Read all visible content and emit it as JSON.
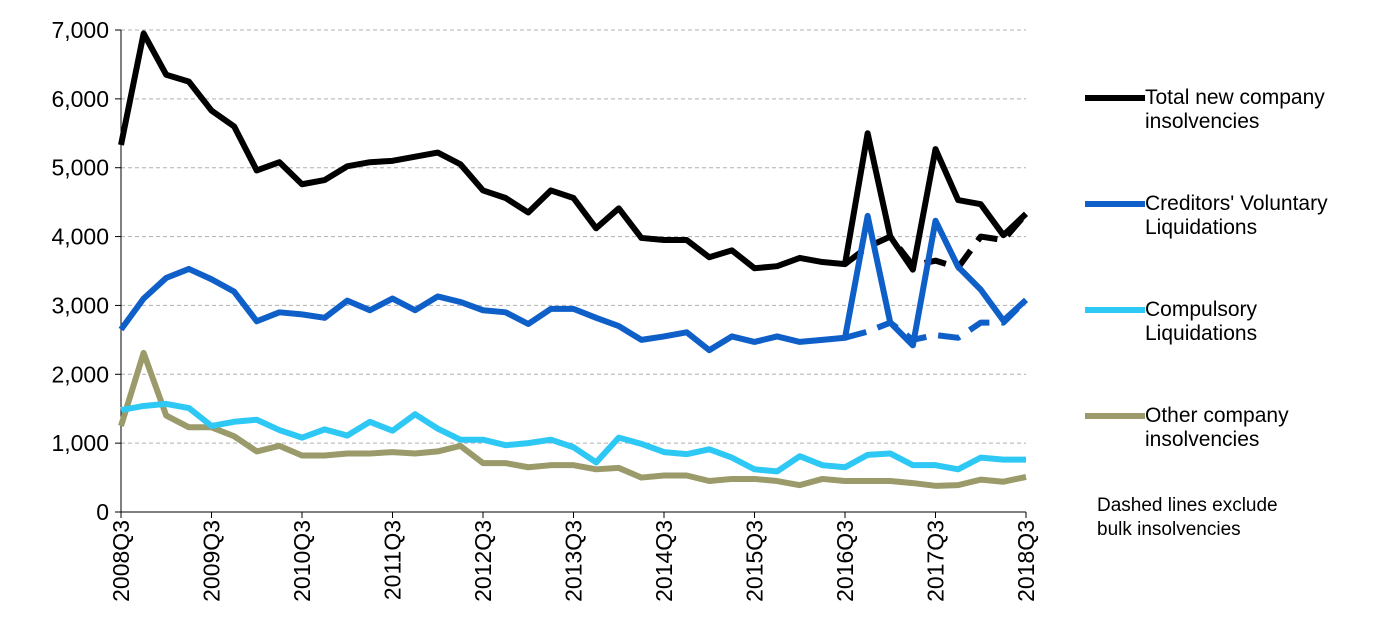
{
  "chart_data": {
    "type": "line",
    "categories": [
      "2008Q3",
      null,
      null,
      null,
      "2009Q3",
      null,
      null,
      null,
      "2010Q3",
      null,
      null,
      null,
      "2011Q3",
      null,
      null,
      null,
      "2012Q3",
      null,
      null,
      null,
      "2013Q3",
      null,
      null,
      null,
      "2014Q3",
      null,
      null,
      null,
      "2015Q3",
      null,
      null,
      null,
      "2016Q3",
      null,
      null,
      null,
      "2017Q3",
      null,
      null,
      null,
      "2018Q3"
    ],
    "series": [
      {
        "name": "Total new company insolvencies",
        "color": "#000000",
        "values": [
          5330,
          6950,
          6350,
          6250,
          5830,
          5600,
          4960,
          5080,
          4760,
          4820,
          5020,
          5080,
          5100,
          5160,
          5220,
          5050,
          4670,
          4560,
          4350,
          4670,
          4560,
          4120,
          4410,
          3980,
          3950,
          3950,
          3700,
          3800,
          3540,
          3570,
          3690,
          3630,
          3600,
          5500,
          4000,
          3520,
          5270,
          4530,
          4470,
          4020,
          4330
        ]
      },
      {
        "name": "Creditors' Voluntary Liquidations",
        "color": "#0f5fc9",
        "values": [
          2650,
          3100,
          3400,
          3530,
          3380,
          3200,
          2770,
          2900,
          2870,
          2820,
          3070,
          2930,
          3100,
          2930,
          3130,
          3050,
          2930,
          2900,
          2730,
          2950,
          2950,
          2820,
          2700,
          2500,
          2550,
          2610,
          2350,
          2550,
          2470,
          2550,
          2470,
          2500,
          2530,
          4300,
          2750,
          2420,
          4230,
          3560,
          3230,
          2780,
          3080
        ]
      },
      {
        "name": "Compulsory Liquidations",
        "color": "#2ec8f5",
        "values": [
          1480,
          1540,
          1570,
          1510,
          1250,
          1310,
          1340,
          1190,
          1080,
          1200,
          1110,
          1310,
          1180,
          1420,
          1210,
          1050,
          1050,
          970,
          1000,
          1050,
          940,
          720,
          1080,
          990,
          870,
          840,
          910,
          790,
          620,
          590,
          810,
          680,
          650,
          830,
          850,
          680,
          680,
          620,
          790,
          760,
          760
        ]
      },
      {
        "name": "Other company insolvencies",
        "color": "#9a9a6a",
        "values": [
          1250,
          2310,
          1400,
          1230,
          1230,
          1100,
          880,
          960,
          820,
          820,
          850,
          850,
          870,
          850,
          880,
          960,
          710,
          710,
          650,
          680,
          680,
          620,
          640,
          500,
          530,
          530,
          450,
          480,
          480,
          450,
          390,
          480,
          450,
          450,
          450,
          420,
          380,
          390,
          470,
          440,
          510
        ]
      },
      {
        "color": "#000000",
        "dashed": true,
        "values": [
          null,
          null,
          null,
          null,
          null,
          null,
          null,
          null,
          null,
          null,
          null,
          null,
          null,
          null,
          null,
          null,
          null,
          null,
          null,
          null,
          null,
          null,
          null,
          null,
          null,
          null,
          null,
          null,
          null,
          null,
          null,
          null,
          3600,
          3850,
          4000,
          3580,
          3650,
          3550,
          4000,
          3950,
          4330
        ]
      },
      {
        "color": "#0f5fc9",
        "dashed": true,
        "values": [
          null,
          null,
          null,
          null,
          null,
          null,
          null,
          null,
          null,
          null,
          null,
          null,
          null,
          null,
          null,
          null,
          null,
          null,
          null,
          null,
          null,
          null,
          null,
          null,
          null,
          null,
          null,
          null,
          null,
          null,
          null,
          null,
          2530,
          2620,
          2750,
          2500,
          2570,
          2530,
          2750,
          2750,
          3080
        ]
      }
    ],
    "ylim": [
      0,
      7000
    ],
    "yticks": [
      0,
      {
        "value": 1000,
        "label": "1,000"
      },
      {
        "value": 2000,
        "label": "2,000"
      },
      {
        "value": 3000,
        "label": "3,000"
      },
      {
        "value": 4000,
        "label": "4,000"
      },
      {
        "value": 5000,
        "label": "5,000"
      },
      {
        "value": 6000,
        "label": "6,000"
      },
      {
        "value": 7000,
        "label": "7,000"
      }
    ],
    "grid": true,
    "legend": "right",
    "annotation": "Dashed lines exclude bulk insolvencies"
  }
}
